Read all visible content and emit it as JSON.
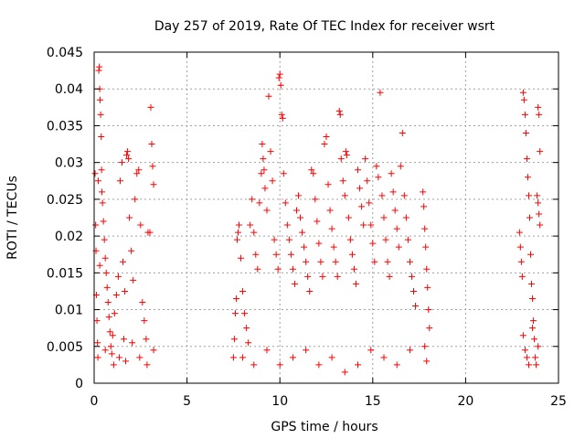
{
  "chart_data": {
    "type": "scatter",
    "title": "Day 257 of 2019, Rate Of TEC Index for receiver wsrt",
    "xlabel": "GPS time / hours",
    "ylabel": "ROTI / TECUs",
    "xlim": [
      0,
      25
    ],
    "ylim": [
      0,
      0.045
    ],
    "x_ticks": [
      "0",
      "5",
      "10",
      "15",
      "20",
      "25"
    ],
    "y_ticks": [
      "0",
      "0.005",
      "0.01",
      "0.015",
      "0.02",
      "0.025",
      "0.03",
      "0.035",
      "0.04",
      "0.045"
    ],
    "grid": true,
    "marker": "+",
    "series_color": "#ff0000",
    "grid_color": "#a0a0a0",
    "series": [
      {
        "points": [
          [
            0.05,
            0.0285
          ],
          [
            0.08,
            0.0215
          ],
          [
            0.1,
            0.018
          ],
          [
            0.12,
            0.012
          ],
          [
            0.15,
            0.0085
          ],
          [
            0.18,
            0.0055
          ],
          [
            0.2,
            0.0035
          ],
          [
            0.22,
            0.0275
          ],
          [
            0.25,
            0.0425
          ],
          [
            0.28,
            0.043
          ],
          [
            0.3,
            0.04
          ],
          [
            0.32,
            0.0385
          ],
          [
            0.35,
            0.0365
          ],
          [
            0.38,
            0.0335
          ],
          [
            0.4,
            0.029
          ],
          [
            0.42,
            0.026
          ],
          [
            0.45,
            0.0245
          ],
          [
            0.5,
            0.022
          ],
          [
            0.55,
            0.0195
          ],
          [
            0.6,
            0.017
          ],
          [
            0.65,
            0.015
          ],
          [
            0.7,
            0.013
          ],
          [
            0.75,
            0.011
          ],
          [
            0.8,
            0.009
          ],
          [
            0.85,
            0.007
          ],
          [
            0.9,
            0.005
          ],
          [
            0.95,
            0.004
          ],
          [
            1.0,
            0.0065
          ],
          [
            1.1,
            0.0095
          ],
          [
            1.2,
            0.012
          ],
          [
            1.3,
            0.0145
          ],
          [
            1.4,
            0.0275
          ],
          [
            1.5,
            0.03
          ],
          [
            1.55,
            0.0165
          ],
          [
            1.6,
            0.006
          ],
          [
            1.7,
            0.003
          ],
          [
            1.75,
            0.031
          ],
          [
            1.8,
            0.0315
          ],
          [
            1.85,
            0.0305
          ],
          [
            1.9,
            0.0225
          ],
          [
            2.0,
            0.018
          ],
          [
            2.1,
            0.014
          ],
          [
            2.2,
            0.025
          ],
          [
            2.3,
            0.0285
          ],
          [
            2.4,
            0.029
          ],
          [
            2.5,
            0.0215
          ],
          [
            2.6,
            0.011
          ],
          [
            2.7,
            0.0085
          ],
          [
            2.8,
            0.006
          ],
          [
            2.9,
            0.0205
          ],
          [
            3.0,
            0.0205
          ],
          [
            3.05,
            0.0375
          ],
          [
            3.1,
            0.0325
          ],
          [
            3.15,
            0.0295
          ],
          [
            3.2,
            0.027
          ],
          [
            3.2,
            0.0045
          ],
          [
            0.3,
            0.016
          ],
          [
            0.6,
            0.0045
          ],
          [
            1.05,
            0.0025
          ],
          [
            1.35,
            0.0035
          ],
          [
            1.65,
            0.0125
          ],
          [
            2.05,
            0.0055
          ],
          [
            2.45,
            0.0035
          ],
          [
            2.85,
            0.0025
          ],
          [
            7.5,
            0.0035
          ],
          [
            7.55,
            0.006
          ],
          [
            7.6,
            0.0095
          ],
          [
            7.65,
            0.0115
          ],
          [
            7.7,
            0.0195
          ],
          [
            7.75,
            0.0205
          ],
          [
            7.8,
            0.0215
          ],
          [
            7.9,
            0.017
          ],
          [
            8.0,
            0.0125
          ],
          [
            8.1,
            0.0095
          ],
          [
            8.2,
            0.0075
          ],
          [
            8.3,
            0.0055
          ],
          [
            8.4,
            0.0215
          ],
          [
            8.5,
            0.025
          ],
          [
            8.6,
            0.0205
          ],
          [
            8.7,
            0.0175
          ],
          [
            8.8,
            0.0155
          ],
          [
            8.9,
            0.0245
          ],
          [
            9.0,
            0.0285
          ],
          [
            9.05,
            0.0325
          ],
          [
            9.1,
            0.0305
          ],
          [
            9.15,
            0.029
          ],
          [
            9.2,
            0.0265
          ],
          [
            9.3,
            0.0235
          ],
          [
            9.4,
            0.039
          ],
          [
            9.5,
            0.0315
          ],
          [
            9.6,
            0.0275
          ],
          [
            9.7,
            0.0195
          ],
          [
            9.8,
            0.0175
          ],
          [
            9.9,
            0.0155
          ],
          [
            9.95,
            0.0415
          ],
          [
            10.0,
            0.042
          ],
          [
            10.05,
            0.0405
          ],
          [
            10.1,
            0.0365
          ],
          [
            10.15,
            0.036
          ],
          [
            10.2,
            0.0285
          ],
          [
            10.3,
            0.0245
          ],
          [
            10.4,
            0.0215
          ],
          [
            10.5,
            0.0195
          ],
          [
            10.6,
            0.0175
          ],
          [
            10.7,
            0.0155
          ],
          [
            10.8,
            0.0135
          ],
          [
            10.9,
            0.0235
          ],
          [
            11.0,
            0.0255
          ],
          [
            11.1,
            0.0225
          ],
          [
            11.2,
            0.0205
          ],
          [
            11.3,
            0.0185
          ],
          [
            11.4,
            0.0165
          ],
          [
            11.5,
            0.0145
          ],
          [
            11.6,
            0.0125
          ],
          [
            11.7,
            0.029
          ],
          [
            11.8,
            0.0285
          ],
          [
            11.9,
            0.025
          ],
          [
            12.0,
            0.022
          ],
          [
            12.1,
            0.019
          ],
          [
            12.2,
            0.0165
          ],
          [
            12.3,
            0.0145
          ],
          [
            12.4,
            0.0325
          ],
          [
            12.5,
            0.0335
          ],
          [
            12.6,
            0.027
          ],
          [
            12.7,
            0.0235
          ],
          [
            12.8,
            0.021
          ],
          [
            12.9,
            0.0185
          ],
          [
            13.0,
            0.0165
          ],
          [
            13.1,
            0.0145
          ],
          [
            13.2,
            0.037
          ],
          [
            13.25,
            0.0365
          ],
          [
            13.3,
            0.0305
          ],
          [
            13.4,
            0.0275
          ],
          [
            13.5,
            0.0255
          ],
          [
            13.55,
            0.0315
          ],
          [
            13.6,
            0.031
          ],
          [
            13.7,
            0.0225
          ],
          [
            13.8,
            0.0195
          ],
          [
            13.9,
            0.0175
          ],
          [
            14.0,
            0.0155
          ],
          [
            14.1,
            0.0135
          ],
          [
            14.2,
            0.029
          ],
          [
            14.3,
            0.0265
          ],
          [
            14.4,
            0.024
          ],
          [
            14.5,
            0.0215
          ],
          [
            14.6,
            0.0305
          ],
          [
            14.7,
            0.0275
          ],
          [
            14.8,
            0.0245
          ],
          [
            14.9,
            0.0215
          ],
          [
            15.0,
            0.019
          ],
          [
            15.1,
            0.0165
          ],
          [
            15.2,
            0.0295
          ],
          [
            15.3,
            0.028
          ],
          [
            15.4,
            0.0395
          ],
          [
            15.5,
            0.0255
          ],
          [
            15.6,
            0.0225
          ],
          [
            15.7,
            0.0195
          ],
          [
            15.8,
            0.0165
          ],
          [
            15.9,
            0.0145
          ],
          [
            16.0,
            0.0285
          ],
          [
            16.1,
            0.026
          ],
          [
            16.2,
            0.0235
          ],
          [
            16.3,
            0.021
          ],
          [
            16.4,
            0.0185
          ],
          [
            16.5,
            0.0295
          ],
          [
            16.6,
            0.034
          ],
          [
            16.7,
            0.0255
          ],
          [
            16.8,
            0.0225
          ],
          [
            16.9,
            0.0195
          ],
          [
            17.0,
            0.0165
          ],
          [
            17.1,
            0.0145
          ],
          [
            17.2,
            0.0125
          ],
          [
            17.3,
            0.0105
          ],
          [
            17.7,
            0.026
          ],
          [
            17.75,
            0.024
          ],
          [
            17.8,
            0.021
          ],
          [
            17.85,
            0.0185
          ],
          [
            17.9,
            0.0155
          ],
          [
            17.95,
            0.013
          ],
          [
            18.0,
            0.01
          ],
          [
            18.05,
            0.0075
          ],
          [
            17.8,
            0.005
          ],
          [
            17.9,
            0.003
          ],
          [
            8.0,
            0.0035
          ],
          [
            8.6,
            0.0025
          ],
          [
            9.3,
            0.0045
          ],
          [
            10.0,
            0.0025
          ],
          [
            10.7,
            0.0035
          ],
          [
            11.4,
            0.0045
          ],
          [
            12.1,
            0.0025
          ],
          [
            12.8,
            0.0035
          ],
          [
            13.5,
            0.0015
          ],
          [
            14.2,
            0.0025
          ],
          [
            14.9,
            0.0045
          ],
          [
            15.6,
            0.0035
          ],
          [
            16.3,
            0.0025
          ],
          [
            17.0,
            0.0045
          ],
          [
            22.9,
            0.0205
          ],
          [
            22.95,
            0.0185
          ],
          [
            23.0,
            0.0165
          ],
          [
            23.05,
            0.0145
          ],
          [
            23.1,
            0.0395
          ],
          [
            23.15,
            0.0385
          ],
          [
            23.2,
            0.0365
          ],
          [
            23.25,
            0.034
          ],
          [
            23.3,
            0.0305
          ],
          [
            23.35,
            0.028
          ],
          [
            23.4,
            0.0255
          ],
          [
            23.45,
            0.0225
          ],
          [
            23.5,
            0.0175
          ],
          [
            23.55,
            0.0135
          ],
          [
            23.6,
            0.0115
          ],
          [
            23.65,
            0.0085
          ],
          [
            23.7,
            0.006
          ],
          [
            23.75,
            0.0035
          ],
          [
            23.8,
            0.0025
          ],
          [
            23.85,
            0.0255
          ],
          [
            23.9,
            0.0245
          ],
          [
            23.95,
            0.023
          ],
          [
            24.0,
            0.0315
          ],
          [
            23.9,
            0.0375
          ],
          [
            23.95,
            0.0365
          ],
          [
            24.0,
            0.0215
          ],
          [
            23.1,
            0.0065
          ],
          [
            23.2,
            0.0045
          ],
          [
            23.3,
            0.0035
          ],
          [
            23.4,
            0.0025
          ],
          [
            23.6,
            0.0075
          ],
          [
            23.9,
            0.005
          ]
        ]
      }
    ]
  }
}
